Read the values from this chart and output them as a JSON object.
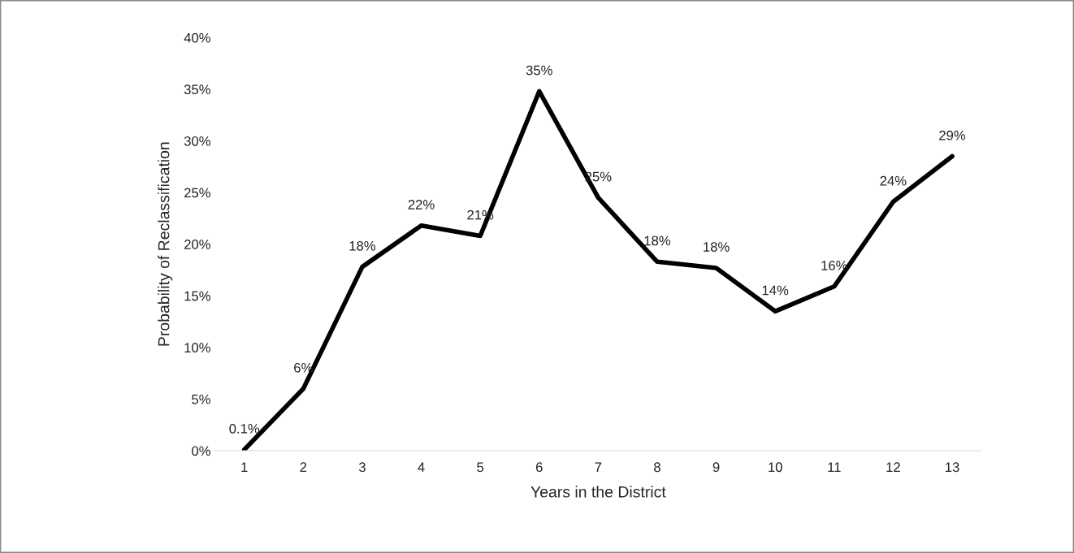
{
  "chart_data": {
    "type": "line",
    "xlabel": "Years in the District",
    "ylabel": "Probability of Reclassification",
    "categories": [
      "1",
      "2",
      "3",
      "4",
      "5",
      "6",
      "7",
      "8",
      "9",
      "10",
      "11",
      "12",
      "13"
    ],
    "series": [
      {
        "color": "#000000",
        "values": [
          0.1,
          6.0,
          17.8,
          21.8,
          20.8,
          34.8,
          24.5,
          18.3,
          17.7,
          13.5,
          15.9,
          24.1,
          28.5
        ],
        "value_labels": [
          "0.1%",
          "6%",
          "18%",
          "22%",
          "21%",
          "35%",
          "25%",
          "18%",
          "18%",
          "14%",
          "16%",
          "24%",
          "29%"
        ]
      }
    ],
    "ylim": [
      0,
      40
    ],
    "yticks": [
      {
        "value": 0,
        "label": "0%"
      },
      {
        "value": 5,
        "label": "5%"
      },
      {
        "value": 10,
        "label": "10%"
      },
      {
        "value": 15,
        "label": "15%"
      },
      {
        "value": 20,
        "label": "20%"
      },
      {
        "value": 25,
        "label": "25%"
      },
      {
        "value": 30,
        "label": "30%"
      },
      {
        "value": 35,
        "label": "35%"
      },
      {
        "value": 40,
        "label": "40%"
      }
    ],
    "grid": false,
    "legend": false,
    "marker": "none",
    "line_style": "solid"
  }
}
